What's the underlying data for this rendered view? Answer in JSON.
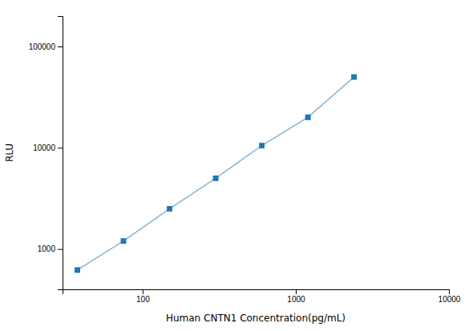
{
  "chart_data": {
    "type": "line",
    "x": [
      37.5,
      75,
      150,
      300,
      600,
      1200,
      2400
    ],
    "values": [
      620,
      1200,
      2500,
      5000,
      10500,
      20000,
      50000
    ],
    "xlabel": "Human CNTN1 Concentration(pg/mL)",
    "ylabel": "RLU",
    "xlim": [
      30,
      10000
    ],
    "ylim": [
      400,
      200000
    ],
    "xticks": [
      100,
      1000,
      10000
    ],
    "yticks": [
      1000,
      10000,
      100000
    ],
    "log": true,
    "marker": "square"
  }
}
